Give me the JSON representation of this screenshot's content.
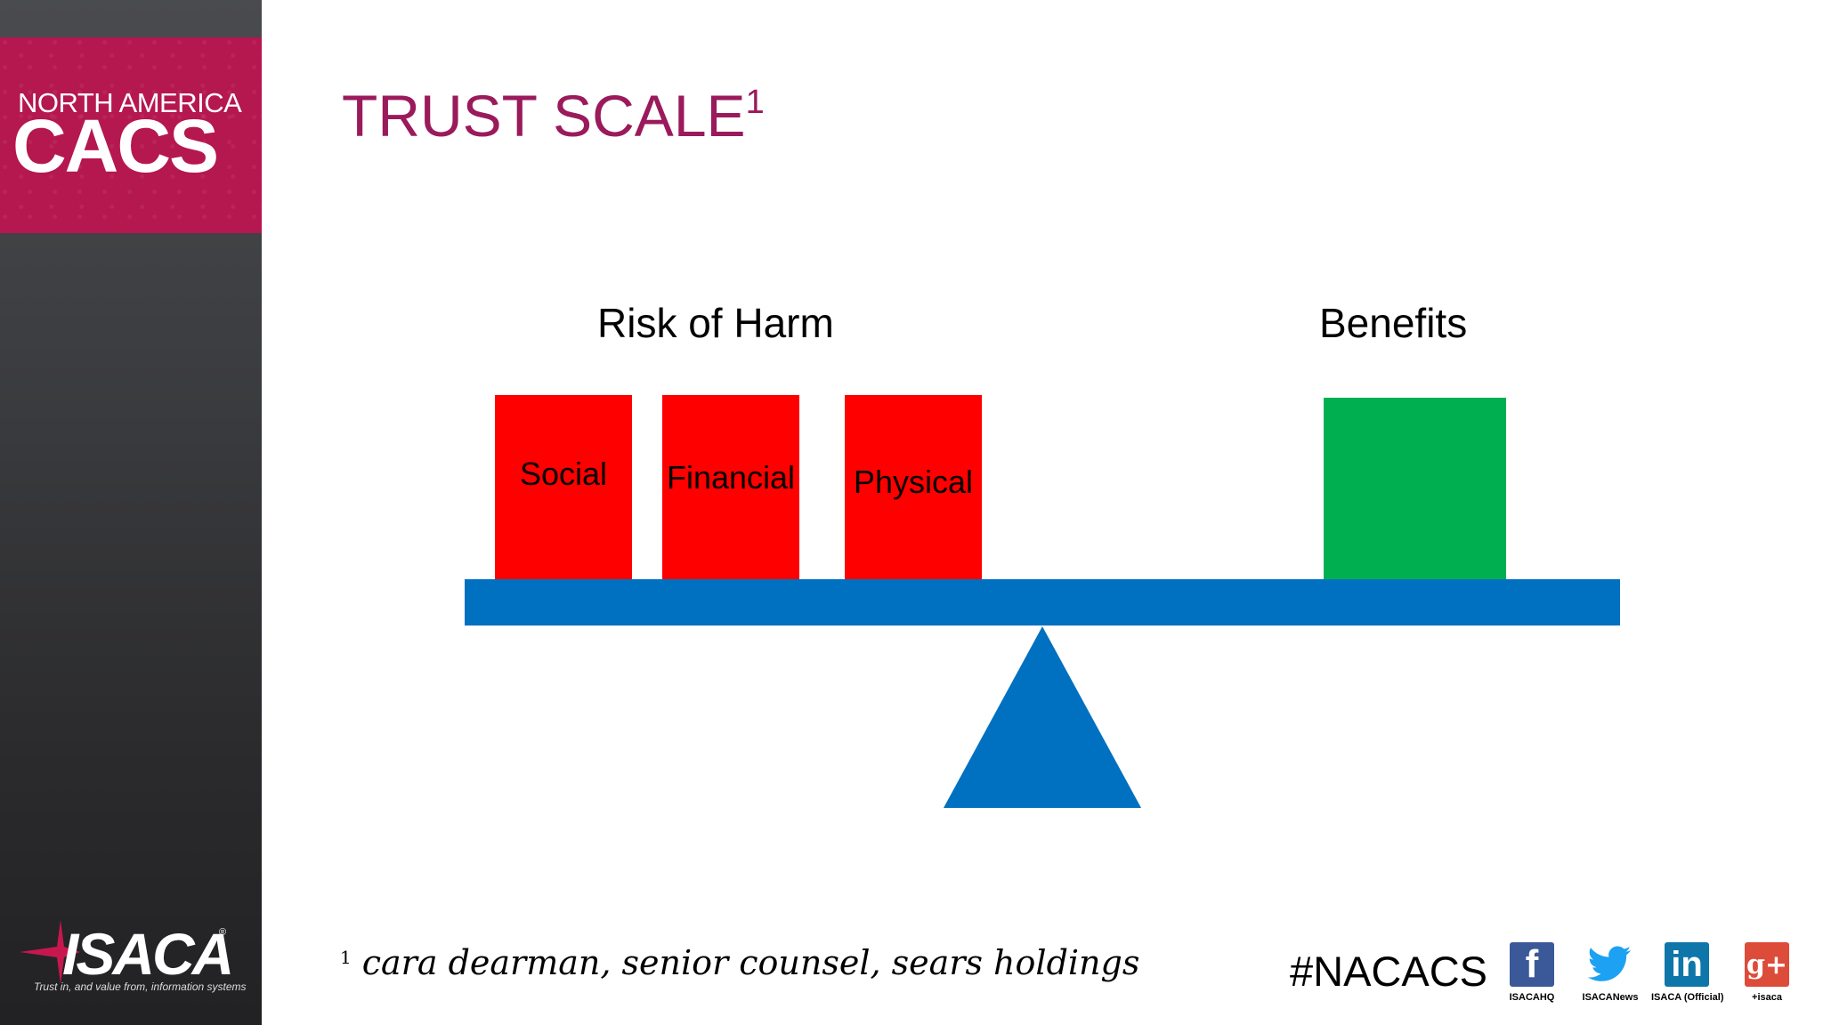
{
  "sidebar": {
    "cacs_top": "NORTH AMERICA",
    "cacs_main": "CACS",
    "isaca_word": "ISACA",
    "isaca_reg": "®",
    "isaca_tagline": "Trust in, and value from, information systems"
  },
  "slide": {
    "title": "TRUST SCALE",
    "title_sup": "1"
  },
  "scale": {
    "left_heading": "Risk of Harm",
    "right_heading": "Benefits",
    "risk_blocks": [
      "Social",
      "Financial",
      "Physical"
    ],
    "colors": {
      "risk": "#ff0000",
      "benefit": "#00b050",
      "beam": "#0070c0"
    }
  },
  "footnote": {
    "marker": "1",
    "text": "cara dearman, senior counsel, sears holdings"
  },
  "footer": {
    "hashtag": "#NACACS",
    "social": [
      {
        "icon": "facebook-icon",
        "glyph": "f",
        "label": "ISACAHQ",
        "color": "#3b5998"
      },
      {
        "icon": "twitter-icon",
        "glyph": "🐦",
        "label": "ISACANews",
        "color": "#ffffff"
      },
      {
        "icon": "linkedin-icon",
        "glyph": "in",
        "label": "ISACA (Official)",
        "color": "#0e76a8"
      },
      {
        "icon": "google-plus-icon",
        "glyph": "g+",
        "label": "+isaca",
        "color": "#dd4b39"
      }
    ]
  }
}
